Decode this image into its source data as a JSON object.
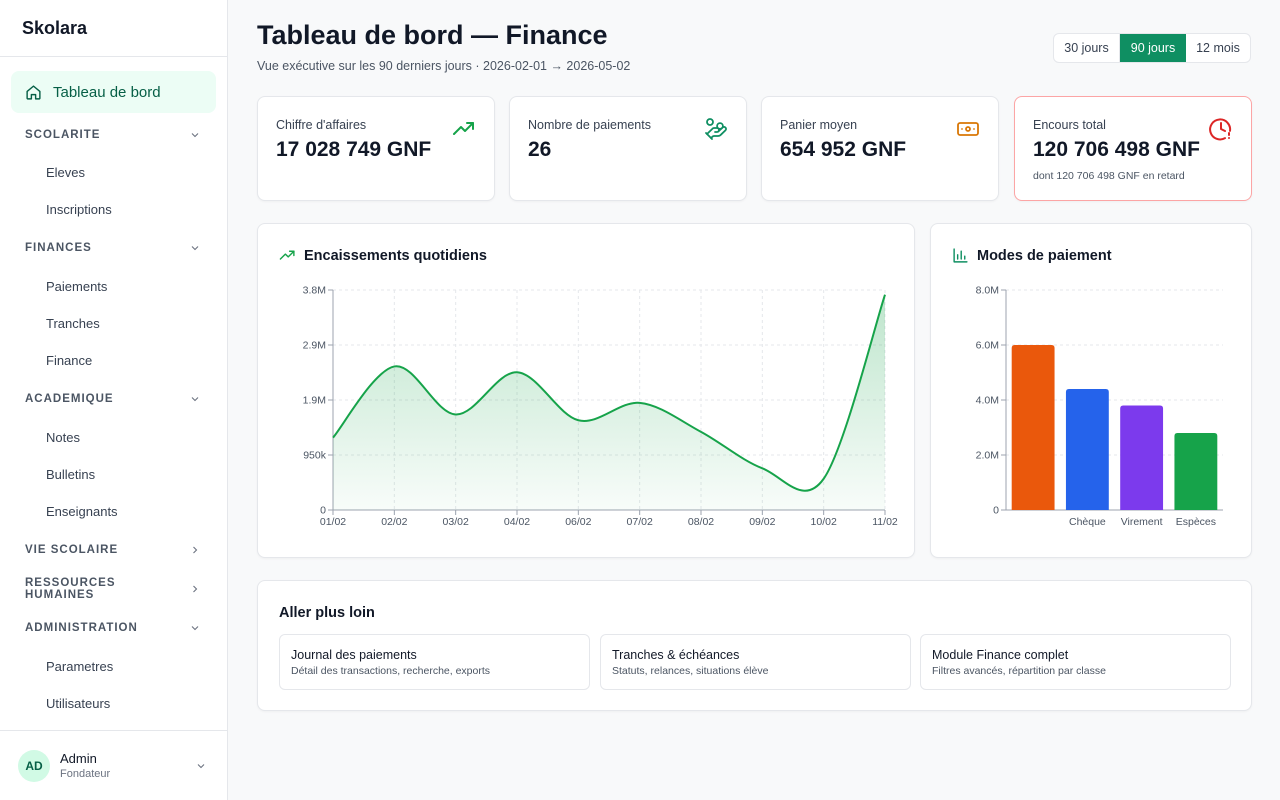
{
  "app": {
    "brand": "Skolara"
  },
  "sidebar": {
    "active": {
      "label": "Tableau de bord",
      "icon": "home-icon"
    },
    "groups": [
      {
        "label": "SCOLARITE",
        "expanded": true,
        "items": [
          "Eleves",
          "Inscriptions"
        ]
      },
      {
        "label": "FINANCES",
        "expanded": true,
        "items": [
          "Paiements",
          "Tranches",
          "Finance"
        ]
      },
      {
        "label": "ACADEMIQUE",
        "expanded": true,
        "items": [
          "Notes",
          "Bulletins",
          "Enseignants"
        ]
      },
      {
        "label": "VIE SCOLAIRE",
        "expanded": false,
        "items": []
      },
      {
        "label": "RESSOURCES HUMAINES",
        "expanded": false,
        "items": []
      },
      {
        "label": "ADMINISTRATION",
        "expanded": true,
        "items": [
          "Parametres",
          "Utilisateurs"
        ]
      }
    ],
    "user": {
      "initials": "AD",
      "name": "Admin",
      "role": "Fondateur"
    }
  },
  "header": {
    "title": "Tableau de bord — Finance",
    "subtitle": "Vue exécutive sur les 90 derniers jours · 2026-02-01 → 2026-05-02",
    "ranges": [
      {
        "label": "30 jours",
        "active": false
      },
      {
        "label": "90 jours",
        "active": true
      },
      {
        "label": "12 mois",
        "active": false
      }
    ]
  },
  "kpis": [
    {
      "label": "Chiffre d'affaires",
      "value": "17 028 749 GNF",
      "icon": "trending-up-icon"
    },
    {
      "label": "Nombre de paiements",
      "value": "26",
      "icon": "hand-coins-icon"
    },
    {
      "label": "Panier moyen",
      "value": "654 952 GNF",
      "icon": "banknote-icon"
    },
    {
      "label": "Encours total",
      "value": "120 706 498 GNF",
      "note": "dont 120 706 498 GNF en retard",
      "icon": "clock-alert-icon"
    }
  ],
  "line_panel": {
    "title": "Encaissements quotidiens",
    "icon": "trending-up-icon"
  },
  "bar_panel": {
    "title": "Modes de paiement",
    "icon": "bar-chart-icon"
  },
  "links": {
    "title": "Aller plus loin",
    "items": [
      {
        "title": "Journal des paiements",
        "desc": "Détail des transactions, recherche, exports"
      },
      {
        "title": "Tranches & échéances",
        "desc": "Statuts, relances, situations élève"
      },
      {
        "title": "Module Finance complet",
        "desc": "Filtres avancés, répartition par classe"
      }
    ]
  },
  "colors": {
    "accent": "#0f8f62",
    "line": "#16a34a",
    "alert": "#dc2626",
    "orange": "#ea580c",
    "blue": "#2563eb",
    "purple": "#7c3aed",
    "green": "#16a34a"
  },
  "chart_data": [
    {
      "type": "area",
      "title": "Encaissements quotidiens",
      "x": [
        "01/02",
        "02/02",
        "03/02",
        "04/02",
        "06/02",
        "07/02",
        "08/02",
        "09/02",
        "10/02",
        "11/02"
      ],
      "y": [
        1250000,
        2480000,
        1650000,
        2380000,
        1550000,
        1850000,
        1350000,
        720000,
        540000,
        3720000
      ],
      "yticks": [
        "0",
        "950k",
        "1.9M",
        "2.9M",
        "3.8M"
      ],
      "ylim": [
        0,
        3800000
      ],
      "grid": true
    },
    {
      "type": "bar",
      "title": "Modes de paiement",
      "categories": [
        "",
        "Chèque",
        "Virement",
        "Espèces"
      ],
      "values": [
        6000000,
        4400000,
        3800000,
        2800000
      ],
      "colors": [
        "#ea580c",
        "#2563eb",
        "#7c3aed",
        "#16a34a"
      ],
      "yticks": [
        "0",
        "2.0M",
        "4.0M",
        "6.0M",
        "8.0M"
      ],
      "ylim": [
        0,
        8000000
      ],
      "grid": true
    }
  ]
}
